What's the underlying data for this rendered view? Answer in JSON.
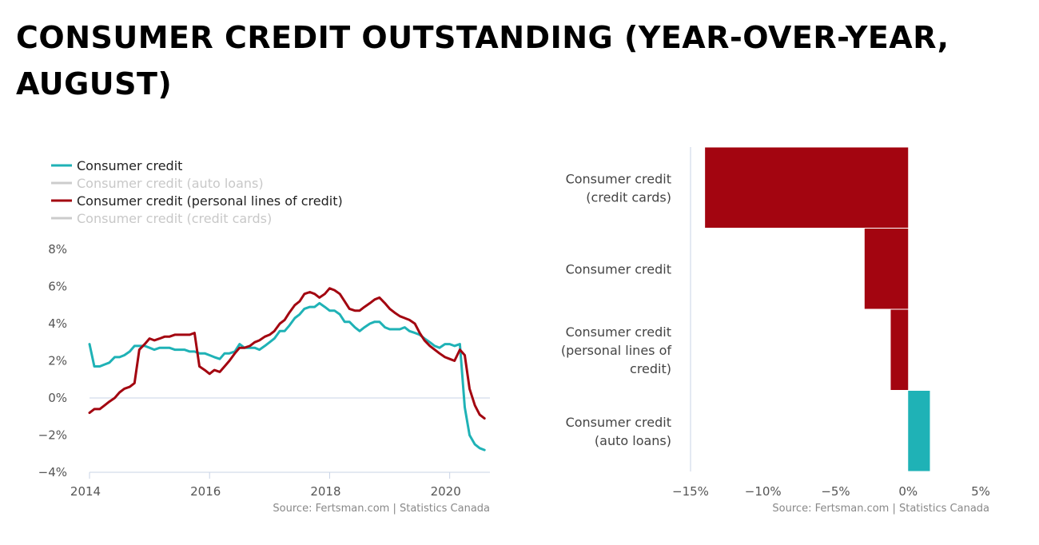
{
  "title": "CONSUMER CREDIT OUTSTANDING (YEAR-OVER-YEAR, AUGUST)",
  "colors": {
    "teal": "#1fb2b6",
    "red": "#a30510",
    "hidden": "#cccccc",
    "grid": "#c8d3e6"
  },
  "chart_data": [
    {
      "type": "line",
      "title": "",
      "xlabel": "",
      "ylabel": "",
      "x_ticks": [
        "2014",
        "2016",
        "2018",
        "2020"
      ],
      "y_ticks": [
        "8%",
        "6%",
        "4%",
        "2%",
        "0%",
        "−2%",
        "−4%"
      ],
      "xlim": [
        2014.0,
        2020.67
      ],
      "ylim": [
        -4,
        8
      ],
      "grid": false,
      "legend_position": "top-left",
      "legend": [
        {
          "name": "Consumer credit",
          "visible": true,
          "color": "#1fb2b6"
        },
        {
          "name": "Consumer credit (auto loans)",
          "visible": false,
          "color": "#cccccc"
        },
        {
          "name": "Consumer credit (personal lines of credit)",
          "visible": true,
          "color": "#a30510"
        },
        {
          "name": "Consumer credit (credit cards)",
          "visible": false,
          "color": "#cccccc"
        }
      ],
      "series": [
        {
          "name": "Consumer credit",
          "color": "#1fb2b6",
          "points": [
            [
              2014.0,
              2.9
            ],
            [
              2014.08,
              1.7
            ],
            [
              2014.17,
              1.7
            ],
            [
              2014.25,
              1.8
            ],
            [
              2014.33,
              1.9
            ],
            [
              2014.42,
              2.2
            ],
            [
              2014.5,
              2.2
            ],
            [
              2014.58,
              2.3
            ],
            [
              2014.67,
              2.5
            ],
            [
              2014.75,
              2.8
            ],
            [
              2014.83,
              2.8
            ],
            [
              2014.92,
              2.8
            ],
            [
              2015.0,
              2.7
            ],
            [
              2015.08,
              2.6
            ],
            [
              2015.17,
              2.7
            ],
            [
              2015.25,
              2.7
            ],
            [
              2015.33,
              2.7
            ],
            [
              2015.42,
              2.6
            ],
            [
              2015.5,
              2.6
            ],
            [
              2015.58,
              2.6
            ],
            [
              2015.67,
              2.5
            ],
            [
              2015.75,
              2.5
            ],
            [
              2015.83,
              2.4
            ],
            [
              2015.92,
              2.4
            ],
            [
              2016.0,
              2.3
            ],
            [
              2016.08,
              2.2
            ],
            [
              2016.17,
              2.1
            ],
            [
              2016.25,
              2.4
            ],
            [
              2016.33,
              2.4
            ],
            [
              2016.42,
              2.5
            ],
            [
              2016.5,
              2.9
            ],
            [
              2016.58,
              2.7
            ],
            [
              2016.67,
              2.7
            ],
            [
              2016.75,
              2.7
            ],
            [
              2016.83,
              2.6
            ],
            [
              2016.92,
              2.8
            ],
            [
              2017.0,
              3.0
            ],
            [
              2017.08,
              3.2
            ],
            [
              2017.17,
              3.6
            ],
            [
              2017.25,
              3.6
            ],
            [
              2017.33,
              3.9
            ],
            [
              2017.42,
              4.3
            ],
            [
              2017.5,
              4.5
            ],
            [
              2017.58,
              4.8
            ],
            [
              2017.67,
              4.9
            ],
            [
              2017.75,
              4.9
            ],
            [
              2017.83,
              5.1
            ],
            [
              2017.92,
              4.9
            ],
            [
              2018.0,
              4.7
            ],
            [
              2018.08,
              4.7
            ],
            [
              2018.17,
              4.5
            ],
            [
              2018.25,
              4.1
            ],
            [
              2018.33,
              4.1
            ],
            [
              2018.42,
              3.8
            ],
            [
              2018.5,
              3.6
            ],
            [
              2018.58,
              3.8
            ],
            [
              2018.67,
              4.0
            ],
            [
              2018.75,
              4.1
            ],
            [
              2018.83,
              4.1
            ],
            [
              2018.92,
              3.8
            ],
            [
              2019.0,
              3.7
            ],
            [
              2019.08,
              3.7
            ],
            [
              2019.17,
              3.7
            ],
            [
              2019.25,
              3.8
            ],
            [
              2019.33,
              3.6
            ],
            [
              2019.42,
              3.5
            ],
            [
              2019.5,
              3.4
            ],
            [
              2019.58,
              3.2
            ],
            [
              2019.67,
              3.0
            ],
            [
              2019.75,
              2.8
            ],
            [
              2019.83,
              2.7
            ],
            [
              2019.92,
              2.9
            ],
            [
              2020.0,
              2.9
            ],
            [
              2020.08,
              2.8
            ],
            [
              2020.17,
              2.9
            ],
            [
              2020.25,
              -0.5
            ],
            [
              2020.33,
              -2.0
            ],
            [
              2020.42,
              -2.5
            ],
            [
              2020.5,
              -2.7
            ],
            [
              2020.58,
              -2.8
            ]
          ]
        },
        {
          "name": "Consumer credit (personal lines of credit)",
          "color": "#a30510",
          "points": [
            [
              2014.0,
              -0.8
            ],
            [
              2014.08,
              -0.6
            ],
            [
              2014.17,
              -0.6
            ],
            [
              2014.25,
              -0.4
            ],
            [
              2014.33,
              -0.2
            ],
            [
              2014.42,
              0.0
            ],
            [
              2014.5,
              0.3
            ],
            [
              2014.58,
              0.5
            ],
            [
              2014.67,
              0.6
            ],
            [
              2014.75,
              0.8
            ],
            [
              2014.83,
              2.6
            ],
            [
              2014.92,
              2.9
            ],
            [
              2015.0,
              3.2
            ],
            [
              2015.08,
              3.1
            ],
            [
              2015.17,
              3.2
            ],
            [
              2015.25,
              3.3
            ],
            [
              2015.33,
              3.3
            ],
            [
              2015.42,
              3.4
            ],
            [
              2015.5,
              3.4
            ],
            [
              2015.58,
              3.4
            ],
            [
              2015.67,
              3.4
            ],
            [
              2015.75,
              3.5
            ],
            [
              2015.83,
              1.7
            ],
            [
              2015.92,
              1.5
            ],
            [
              2016.0,
              1.3
            ],
            [
              2016.08,
              1.5
            ],
            [
              2016.17,
              1.4
            ],
            [
              2016.25,
              1.7
            ],
            [
              2016.33,
              2.0
            ],
            [
              2016.42,
              2.4
            ],
            [
              2016.5,
              2.7
            ],
            [
              2016.58,
              2.7
            ],
            [
              2016.67,
              2.8
            ],
            [
              2016.75,
              3.0
            ],
            [
              2016.83,
              3.1
            ],
            [
              2016.92,
              3.3
            ],
            [
              2017.0,
              3.4
            ],
            [
              2017.08,
              3.6
            ],
            [
              2017.17,
              4.0
            ],
            [
              2017.25,
              4.2
            ],
            [
              2017.33,
              4.6
            ],
            [
              2017.42,
              5.0
            ],
            [
              2017.5,
              5.2
            ],
            [
              2017.58,
              5.6
            ],
            [
              2017.67,
              5.7
            ],
            [
              2017.75,
              5.6
            ],
            [
              2017.83,
              5.4
            ],
            [
              2017.92,
              5.6
            ],
            [
              2018.0,
              5.9
            ],
            [
              2018.08,
              5.8
            ],
            [
              2018.17,
              5.6
            ],
            [
              2018.25,
              5.2
            ],
            [
              2018.33,
              4.8
            ],
            [
              2018.42,
              4.7
            ],
            [
              2018.5,
              4.7
            ],
            [
              2018.58,
              4.9
            ],
            [
              2018.67,
              5.1
            ],
            [
              2018.75,
              5.3
            ],
            [
              2018.83,
              5.4
            ],
            [
              2018.92,
              5.1
            ],
            [
              2019.0,
              4.8
            ],
            [
              2019.08,
              4.6
            ],
            [
              2019.17,
              4.4
            ],
            [
              2019.25,
              4.3
            ],
            [
              2019.33,
              4.2
            ],
            [
              2019.42,
              4.0
            ],
            [
              2019.5,
              3.5
            ],
            [
              2019.58,
              3.1
            ],
            [
              2019.67,
              2.8
            ],
            [
              2019.75,
              2.6
            ],
            [
              2019.83,
              2.4
            ],
            [
              2019.92,
              2.2
            ],
            [
              2020.0,
              2.1
            ],
            [
              2020.08,
              2.0
            ],
            [
              2020.17,
              2.6
            ],
            [
              2020.25,
              2.3
            ],
            [
              2020.33,
              0.5
            ],
            [
              2020.42,
              -0.4
            ],
            [
              2020.5,
              -0.9
            ],
            [
              2020.58,
              -1.1
            ]
          ]
        }
      ],
      "source": "Source: Fertsman.com | Statistics Canada"
    },
    {
      "type": "bar",
      "orientation": "horizontal",
      "categories": [
        [
          "Consumer credit",
          "(credit cards)"
        ],
        [
          "Consumer credit"
        ],
        [
          "Consumer credit",
          "(personal lines of",
          "credit)"
        ],
        [
          "Consumer credit",
          "(auto loans)"
        ]
      ],
      "values": [
        -14.0,
        -3.0,
        -1.2,
        1.5
      ],
      "colors": [
        "#a30510",
        "#a30510",
        "#a30510",
        "#1fb2b6"
      ],
      "x_ticks": [
        "−15%",
        "−10%",
        "−5%",
        "0%",
        "5%"
      ],
      "xlim": [
        -15,
        5
      ],
      "source": "Source: Fertsman.com | Statistics Canada"
    }
  ]
}
